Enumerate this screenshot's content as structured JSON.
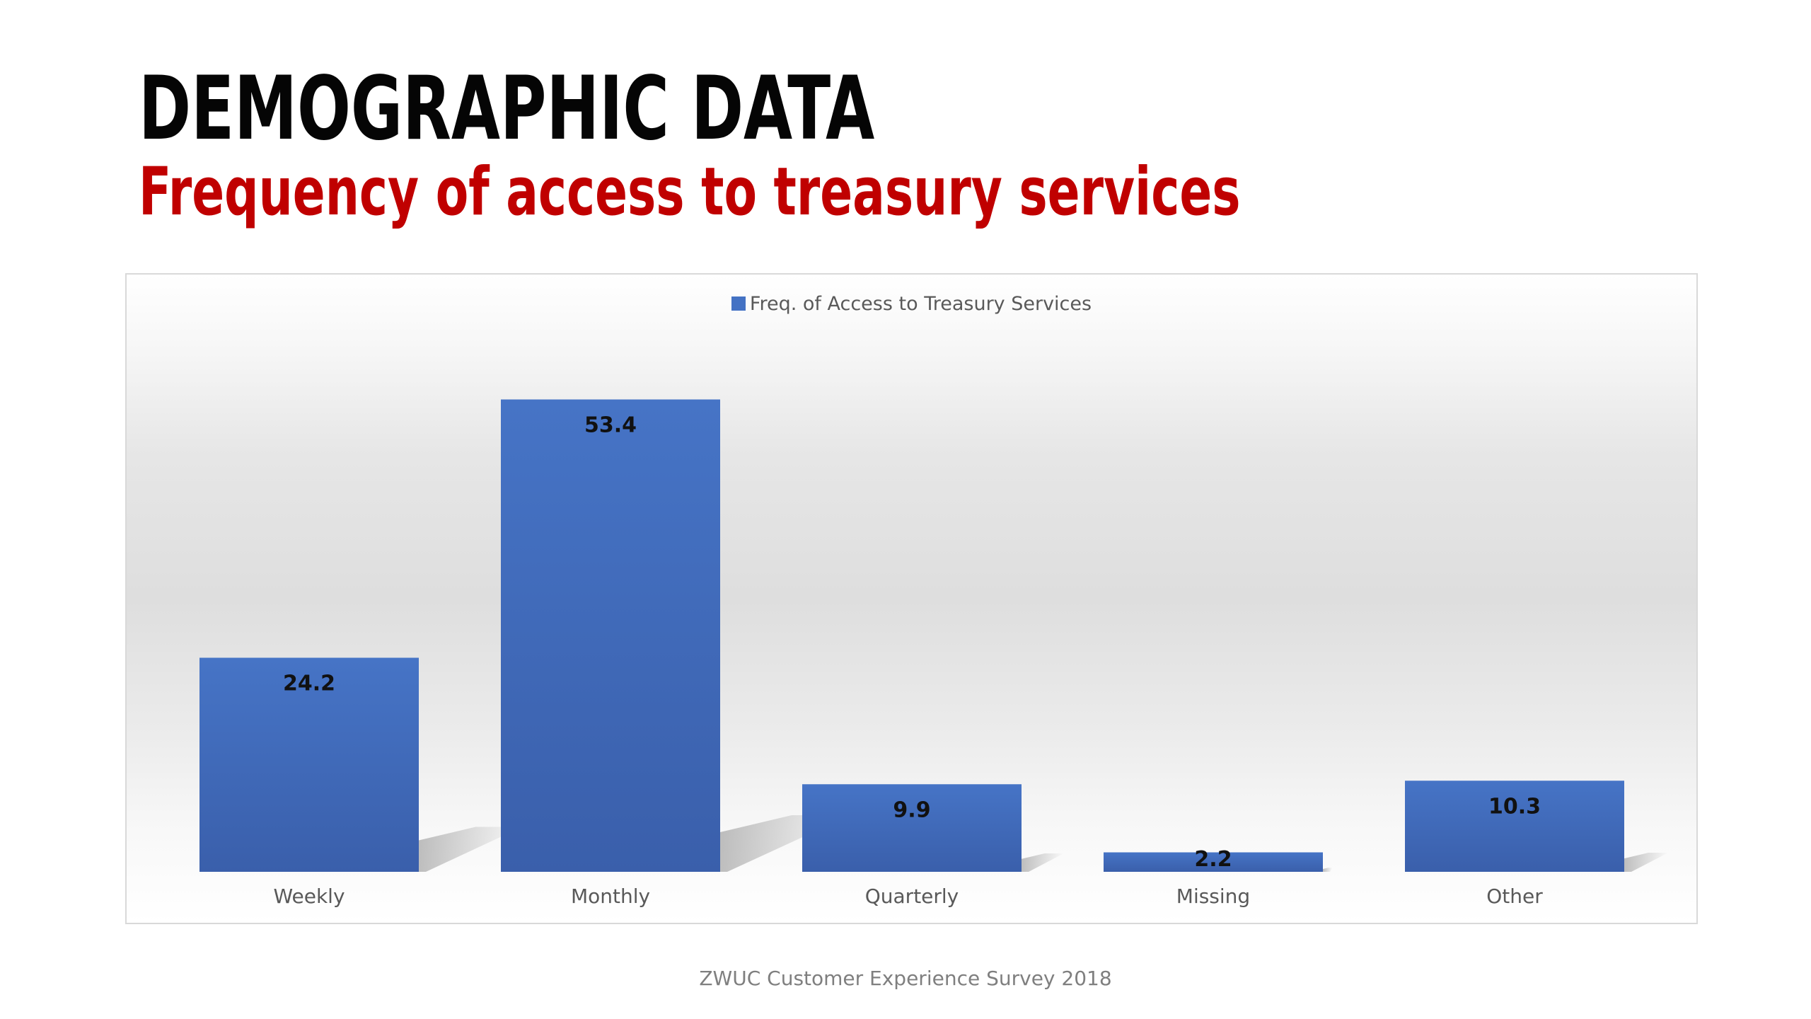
{
  "slide": {
    "title": "DEMOGRAPHIC DATA",
    "subtitle": "Frequency of access to treasury services",
    "footer": "ZWUC Customer Experience Survey 2018"
  },
  "colors": {
    "title": "#050505",
    "subtitle": "#c00000",
    "bar": "#4472c4",
    "bar_dark": "#3a5fab",
    "footer": "#7f7f7f"
  },
  "chart_data": {
    "type": "bar",
    "title": "",
    "xlabel": "",
    "ylabel": "",
    "categories": [
      "Weekly",
      "Monthly",
      "Quarterly",
      "Missing",
      "Other"
    ],
    "series": [
      {
        "name": "Freq. of Access to Treasury Services",
        "values": [
          24.2,
          53.4,
          9.9,
          2.2,
          10.3
        ],
        "color": "#4472c4"
      }
    ],
    "data_labels": [
      "24.2",
      "53.4",
      "9.9",
      "2.2",
      "10.3"
    ],
    "ylim": [
      0,
      60
    ],
    "grid": false,
    "y_axis_visible": false,
    "legend_position": "top"
  }
}
